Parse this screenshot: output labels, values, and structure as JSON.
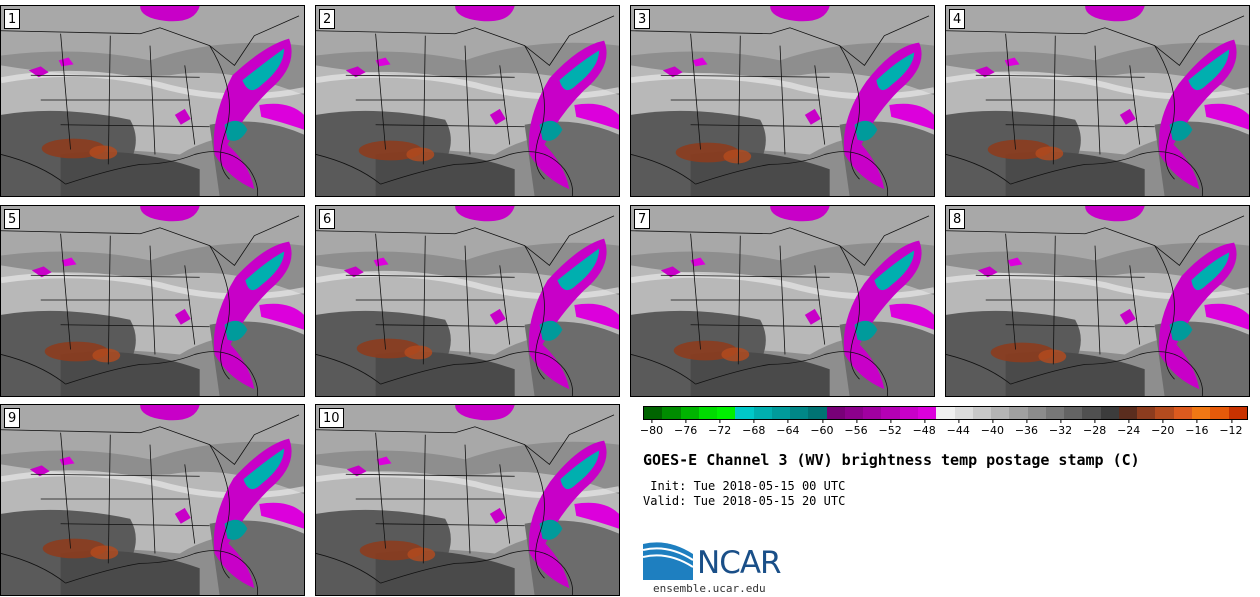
{
  "panels": [
    {
      "label": "1"
    },
    {
      "label": "2"
    },
    {
      "label": "3"
    },
    {
      "label": "4"
    },
    {
      "label": "5"
    },
    {
      "label": "6"
    },
    {
      "label": "7"
    },
    {
      "label": "8"
    },
    {
      "label": "9"
    },
    {
      "label": "10"
    }
  ],
  "colorbar": {
    "colors": [
      "#006400",
      "#008c00",
      "#00b400",
      "#00dc00",
      "#00f000",
      "#00c8c8",
      "#00afaf",
      "#009b9b",
      "#008787",
      "#007373",
      "#780078",
      "#8c008c",
      "#a000a0",
      "#b400b4",
      "#c800c8",
      "#dc00dc",
      "#f0f0f0",
      "#dcdcdc",
      "#c8c8c8",
      "#b4b4b4",
      "#a0a0a0",
      "#8c8c8c",
      "#787878",
      "#646464",
      "#505050",
      "#3c3c3c",
      "#5a2d1e",
      "#8c3c1e",
      "#b44b1e",
      "#dc5a1e",
      "#f07814",
      "#e65a0a",
      "#c83200"
    ],
    "ticks": [
      "−80",
      "−76",
      "−72",
      "−68",
      "−64",
      "−60",
      "−56",
      "−52",
      "−48",
      "−44",
      "−40",
      "−36",
      "−32",
      "−28",
      "−24",
      "−20",
      "−16",
      "−12"
    ],
    "min": -81,
    "max": -10
  },
  "title": "GOES-E Channel 3 (WV) brightness temp postage stamp (C)",
  "init_line": " Init: Tue 2018-05-15 00 UTC",
  "valid_line": "Valid: Tue 2018-05-15 20 UTC",
  "logo": {
    "text": "NCAR",
    "url": "ensemble.ucar.edu",
    "color": "#1a4f88",
    "wave_color": "#1e7fc0"
  }
}
